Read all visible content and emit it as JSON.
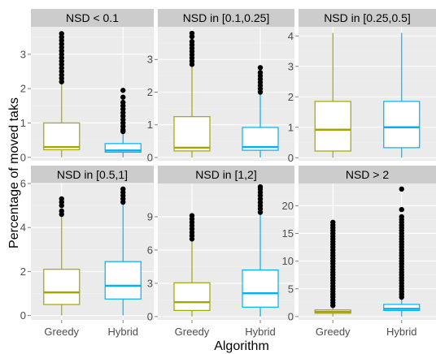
{
  "chart_data": {
    "type": "box",
    "xlabel": "Algorithm",
    "ylabel": "Percentage of moved taks",
    "categories": [
      "Greedy",
      "Hybrid"
    ],
    "colors": {
      "Greedy": "#a3a500",
      "Hybrid": "#00b0f6"
    },
    "panel_background": "#ebebeb",
    "strip_background": "#cccccc",
    "grid": true,
    "legend": "none",
    "panels": [
      {
        "title": "NSD < 0.1",
        "ylim": [
          -0.1,
          3.8
        ],
        "yticks": [
          0,
          1,
          2,
          3
        ],
        "boxes": [
          {
            "category": "Greedy",
            "min": 0.0,
            "q1": 0.22,
            "median": 0.3,
            "q3": 1.0,
            "max": 2.15,
            "outliers": [
              2.2,
              2.3,
              2.4,
              2.5,
              2.6,
              2.7,
              2.8,
              2.9,
              3.0,
              3.1,
              3.2,
              3.3,
              3.4,
              3.5,
              3.6
            ]
          },
          {
            "category": "Hybrid",
            "min": 0.0,
            "q1": 0.15,
            "median": 0.2,
            "q3": 0.4,
            "max": 0.72,
            "outliers": [
              0.75,
              0.8,
              0.9,
              1.0,
              1.1,
              1.2,
              1.3,
              1.4,
              1.5,
              1.6,
              1.75,
              1.95
            ]
          }
        ]
      },
      {
        "title": "NSD in [0.1,0.25]",
        "ylim": [
          -0.1,
          4.0
        ],
        "yticks": [
          0,
          1,
          2,
          3
        ],
        "boxes": [
          {
            "category": "Greedy",
            "min": 0.0,
            "q1": 0.2,
            "median": 0.3,
            "q3": 1.25,
            "max": 2.8,
            "outliers": [
              2.85,
              2.95,
              3.05,
              3.15,
              3.25,
              3.35,
              3.45,
              3.55,
              3.7,
              3.8
            ]
          },
          {
            "category": "Hybrid",
            "min": 0.0,
            "q1": 0.22,
            "median": 0.32,
            "q3": 0.92,
            "max": 1.95,
            "outliers": [
              2.0,
              2.1,
              2.2,
              2.3,
              2.4,
              2.5,
              2.6,
              2.75
            ]
          }
        ]
      },
      {
        "title": "NSD  in [0.25,0.5]",
        "ylim": [
          -0.1,
          4.3
        ],
        "yticks": [
          0,
          1,
          2,
          3,
          4
        ],
        "boxes": [
          {
            "category": "Greedy",
            "min": 0.0,
            "q1": 0.22,
            "median": 0.92,
            "q3": 1.85,
            "max": 4.1,
            "outliers": []
          },
          {
            "category": "Hybrid",
            "min": 0.0,
            "q1": 0.33,
            "median": 1.0,
            "q3": 1.85,
            "max": 4.1,
            "outliers": []
          }
        ]
      },
      {
        "title": "NSD  in [0.5,1]",
        "ylim": [
          -0.2,
          6.0
        ],
        "yticks": [
          0,
          2,
          4,
          6
        ],
        "boxes": [
          {
            "category": "Greedy",
            "min": 0.0,
            "q1": 0.5,
            "median": 1.05,
            "q3": 2.1,
            "max": 4.5,
            "outliers": [
              4.6,
              4.75,
              5.0,
              5.15,
              5.3
            ]
          },
          {
            "category": "Hybrid",
            "min": 0.0,
            "q1": 0.75,
            "median": 1.35,
            "q3": 2.45,
            "max": 5.05,
            "outliers": [
              5.15,
              5.3,
              5.45,
              5.6,
              5.75
            ]
          }
        ]
      },
      {
        "title": "NSD  in [1,2]",
        "ylim": [
          -0.3,
          12.0
        ],
        "yticks": [
          0,
          3,
          6,
          9
        ],
        "boxes": [
          {
            "category": "Greedy",
            "min": 0.0,
            "q1": 0.55,
            "median": 1.3,
            "q3": 3.05,
            "max": 6.8,
            "outliers": [
              7.0,
              7.3,
              7.6,
              7.9,
              8.2,
              8.5,
              8.8,
              9.1
            ]
          },
          {
            "category": "Hybrid",
            "min": 0.0,
            "q1": 0.85,
            "median": 2.1,
            "q3": 4.2,
            "max": 9.2,
            "outliers": [
              9.4,
              9.7,
              10.0,
              10.3,
              10.6,
              10.9,
              11.2,
              11.5,
              11.7
            ]
          }
        ]
      },
      {
        "title": "NSD > 2",
        "ylim": [
          -0.6,
          24.0
        ],
        "yticks": [
          0,
          5,
          10,
          15,
          20
        ],
        "boxes": [
          {
            "category": "Greedy",
            "min": 0.0,
            "q1": 0.6,
            "median": 0.85,
            "q3": 1.2,
            "max": 1.9,
            "outliers": [
              2.0,
              2.5,
              3.0,
              3.5,
              4.0,
              4.5,
              5.0,
              5.5,
              6.0,
              6.5,
              7.0,
              7.5,
              8.0,
              8.5,
              9.0,
              9.5,
              10.0,
              10.5,
              11.0,
              11.5,
              12.0,
              12.5,
              13.0,
              13.5,
              14.0,
              14.5,
              15.0,
              15.5,
              16.0,
              16.5,
              17.0
            ]
          },
          {
            "category": "Hybrid",
            "min": 0.0,
            "q1": 1.1,
            "median": 1.4,
            "q3": 2.2,
            "max": 3.4,
            "outliers": [
              3.5,
              4.0,
              4.5,
              5.0,
              5.5,
              6.0,
              6.5,
              7.0,
              7.5,
              8.0,
              8.5,
              9.0,
              9.5,
              10.0,
              10.5,
              11.0,
              11.5,
              12.0,
              12.5,
              13.0,
              13.5,
              14.0,
              14.5,
              15.0,
              15.5,
              16.0,
              16.5,
              17.0,
              17.5,
              18.0,
              19.3,
              23.0
            ]
          }
        ]
      }
    ]
  }
}
